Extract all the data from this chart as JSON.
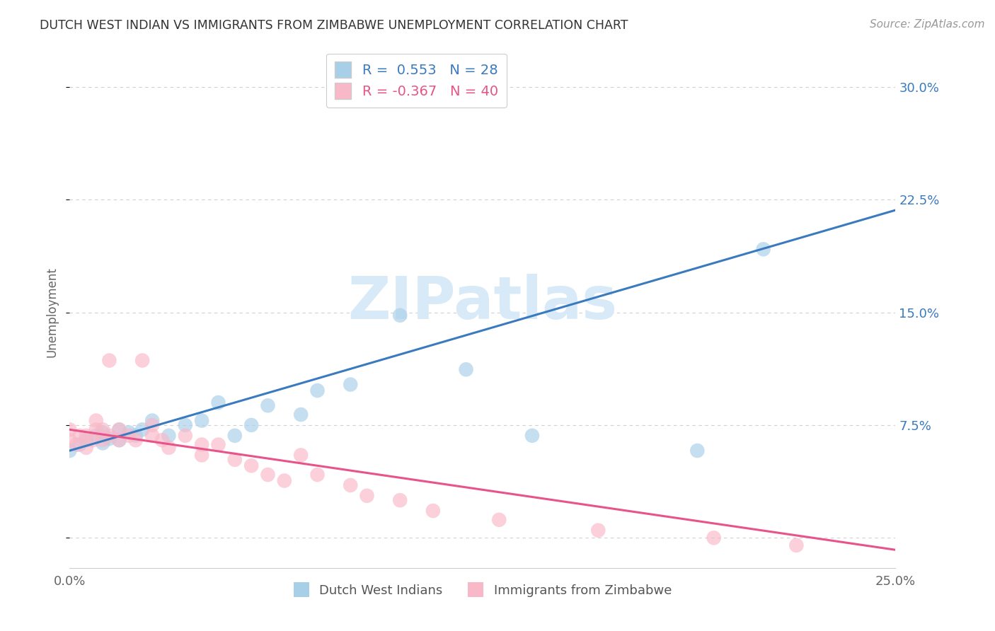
{
  "title": "DUTCH WEST INDIAN VS IMMIGRANTS FROM ZIMBABWE UNEMPLOYMENT CORRELATION CHART",
  "source": "Source: ZipAtlas.com",
  "ylabel": "Unemployment",
  "xlim": [
    0.0,
    0.25
  ],
  "ylim": [
    -0.02,
    0.32
  ],
  "yticks": [
    0.0,
    0.075,
    0.15,
    0.225,
    0.3
  ],
  "ytick_labels": [
    "",
    "7.5%",
    "15.0%",
    "22.5%",
    "30.0%"
  ],
  "xticks": [
    0.0,
    0.25
  ],
  "xtick_labels": [
    "0.0%",
    "25.0%"
  ],
  "r_blue": 0.553,
  "n_blue": 28,
  "r_pink": -0.367,
  "n_pink": 40,
  "legend_label_blue": "Dutch West Indians",
  "legend_label_pink": "Immigrants from Zimbabwe",
  "blue_color": "#a8cfe8",
  "pink_color": "#f9b8c8",
  "blue_line_color": "#3a7abf",
  "pink_line_color": "#e8538a",
  "blue_scatter_x": [
    0.0,
    0.003,
    0.005,
    0.008,
    0.01,
    0.01,
    0.012,
    0.015,
    0.015,
    0.018,
    0.02,
    0.022,
    0.025,
    0.03,
    0.035,
    0.04,
    0.045,
    0.05,
    0.055,
    0.06,
    0.07,
    0.075,
    0.085,
    0.1,
    0.12,
    0.14,
    0.19,
    0.21
  ],
  "blue_scatter_y": [
    0.058,
    0.062,
    0.065,
    0.068,
    0.063,
    0.07,
    0.066,
    0.065,
    0.072,
    0.07,
    0.068,
    0.072,
    0.078,
    0.068,
    0.075,
    0.078,
    0.09,
    0.068,
    0.075,
    0.088,
    0.082,
    0.098,
    0.102,
    0.148,
    0.112,
    0.068,
    0.058,
    0.192
  ],
  "pink_scatter_x": [
    0.0,
    0.0,
    0.002,
    0.003,
    0.005,
    0.005,
    0.007,
    0.008,
    0.008,
    0.01,
    0.01,
    0.012,
    0.012,
    0.015,
    0.015,
    0.018,
    0.02,
    0.022,
    0.025,
    0.025,
    0.028,
    0.03,
    0.035,
    0.04,
    0.04,
    0.045,
    0.05,
    0.055,
    0.06,
    0.065,
    0.07,
    0.075,
    0.085,
    0.09,
    0.1,
    0.11,
    0.13,
    0.16,
    0.195,
    0.22
  ],
  "pink_scatter_y": [
    0.065,
    0.072,
    0.062,
    0.068,
    0.06,
    0.068,
    0.065,
    0.072,
    0.078,
    0.065,
    0.072,
    0.068,
    0.118,
    0.065,
    0.072,
    0.068,
    0.065,
    0.118,
    0.068,
    0.075,
    0.065,
    0.06,
    0.068,
    0.055,
    0.062,
    0.062,
    0.052,
    0.048,
    0.042,
    0.038,
    0.055,
    0.042,
    0.035,
    0.028,
    0.025,
    0.018,
    0.012,
    0.005,
    0.0,
    -0.005
  ],
  "blue_line_x0": 0.0,
  "blue_line_y0": 0.058,
  "blue_line_x1": 0.25,
  "blue_line_y1": 0.218,
  "pink_line_x0": 0.0,
  "pink_line_y0": 0.072,
  "pink_line_x1": 0.25,
  "pink_line_y1": -0.008,
  "watermark_text": "ZIPatlas",
  "background_color": "#ffffff",
  "grid_color": "#d0d0d0"
}
